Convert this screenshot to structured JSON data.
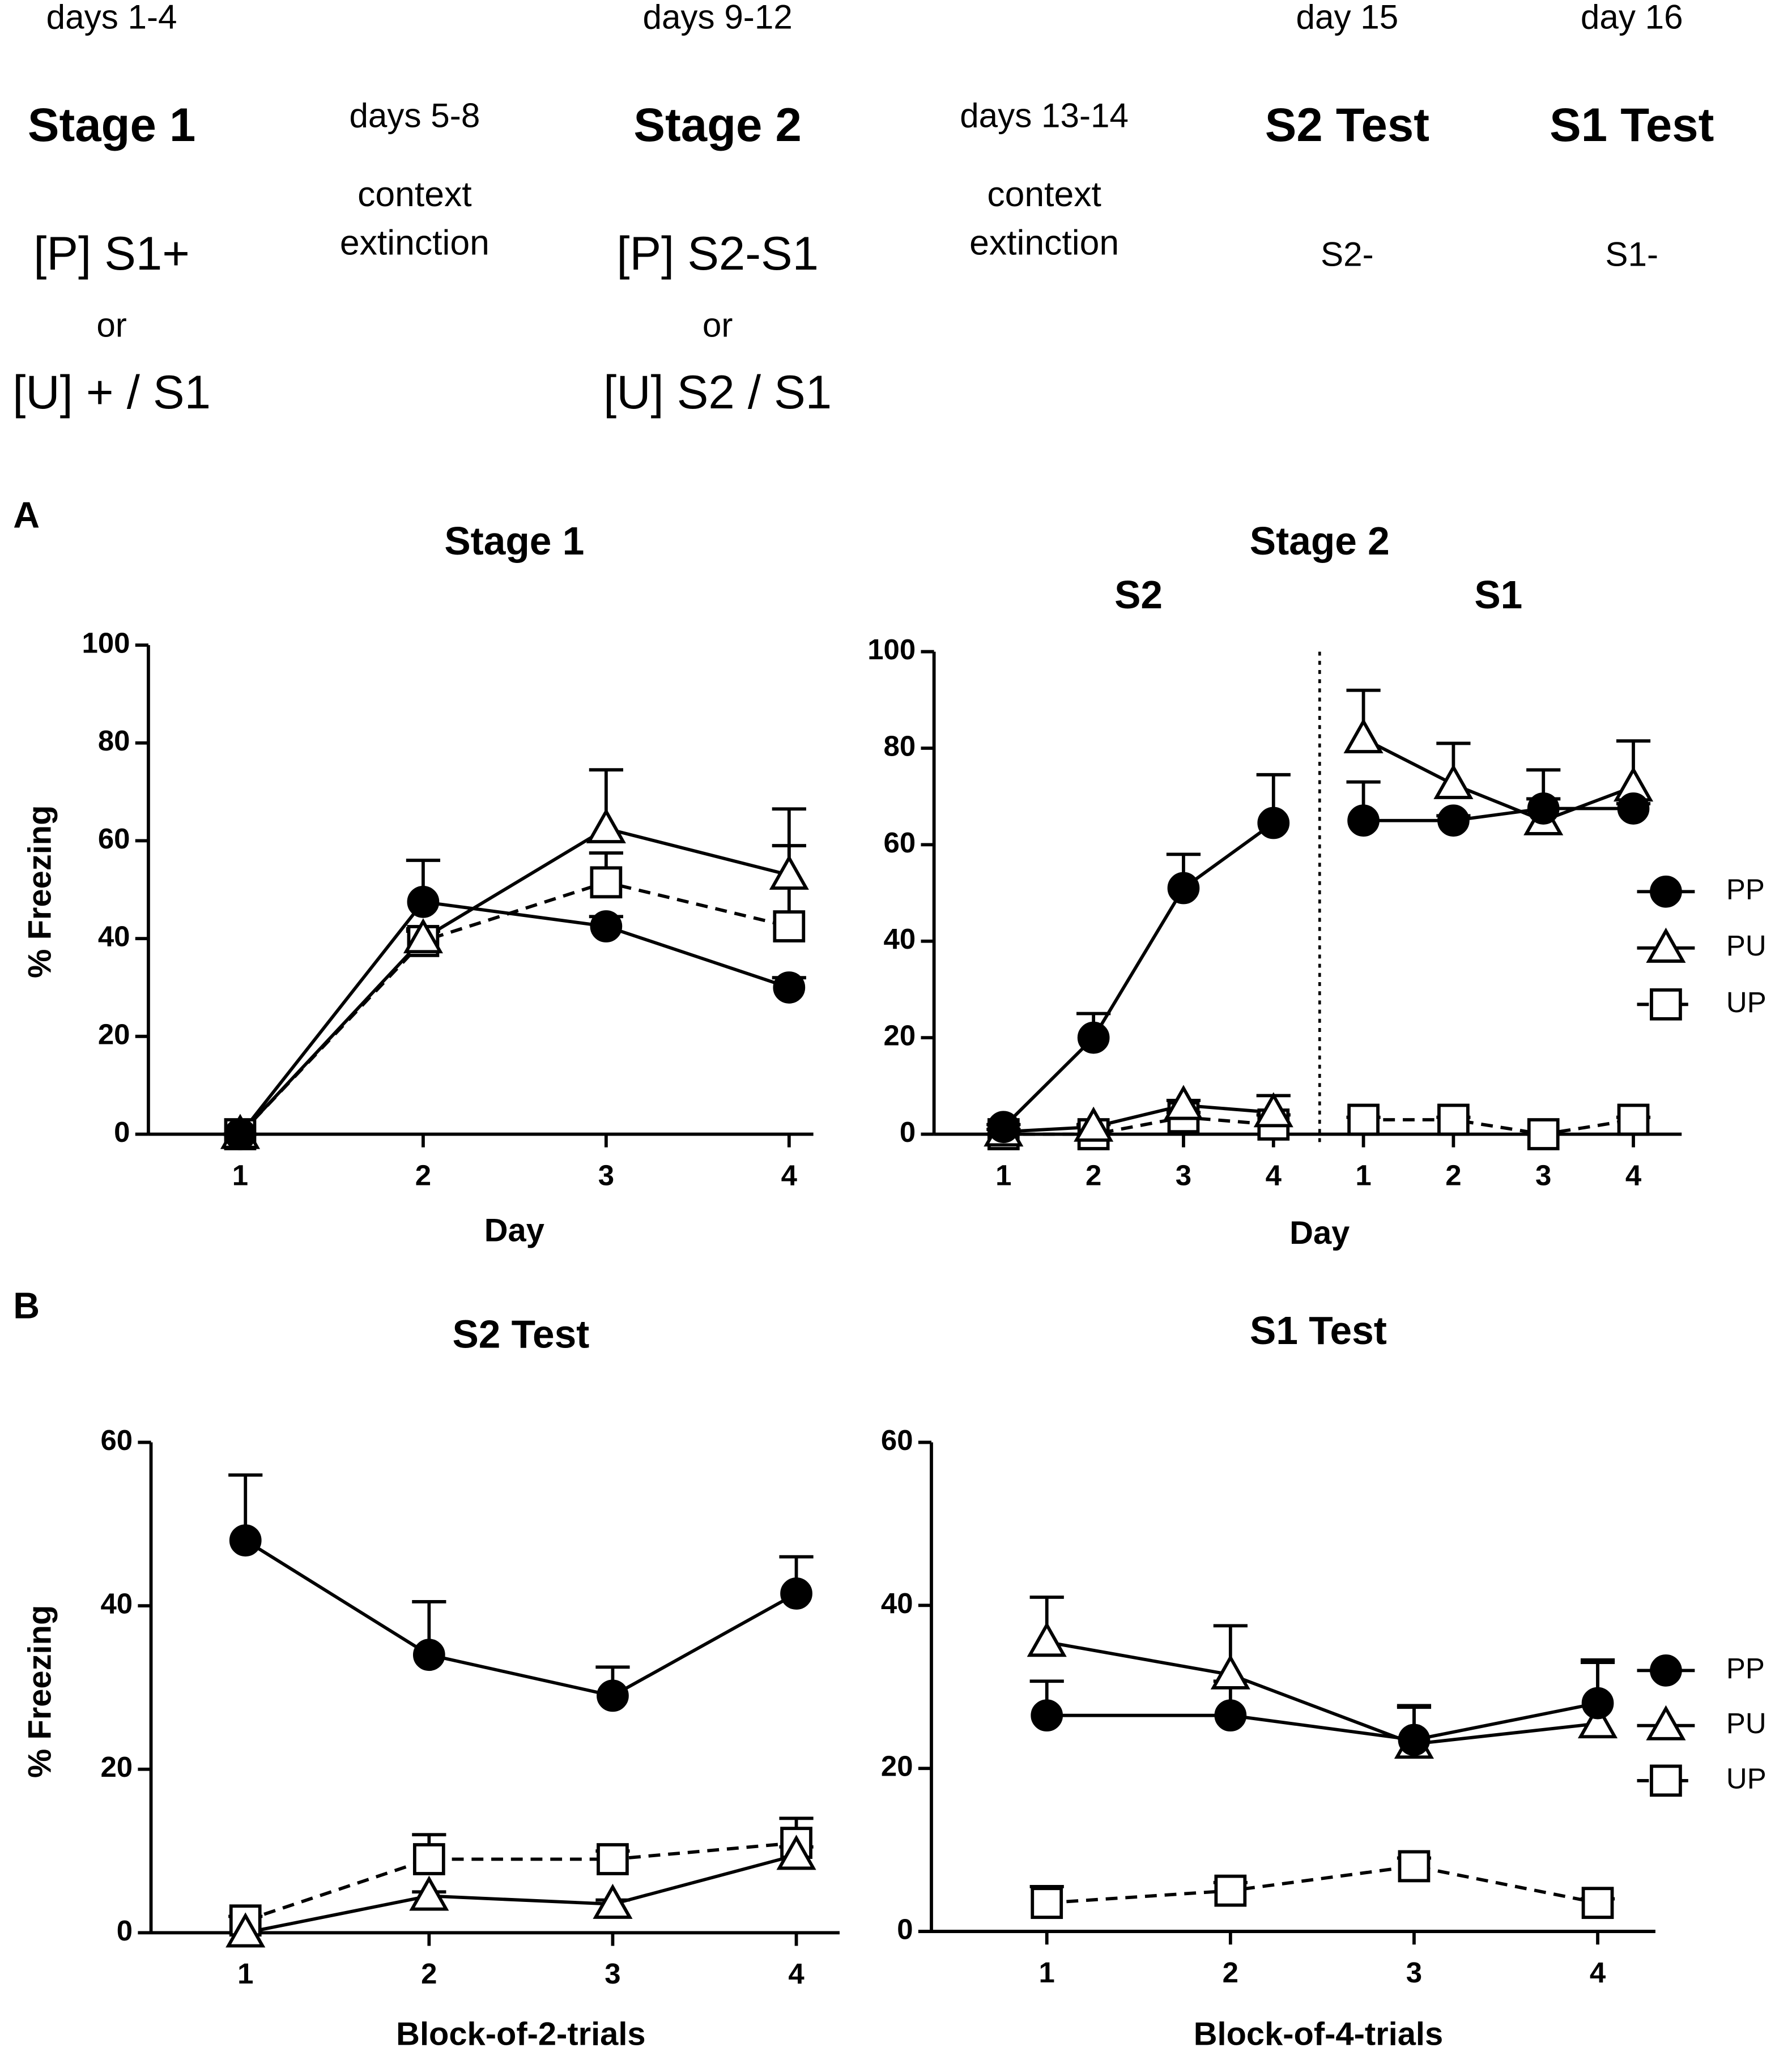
{
  "panels": [
    "A",
    "B"
  ],
  "design": [
    {
      "days": "days 1-4",
      "stage": "Stage 1",
      "lines": [
        "[P] S1+",
        "or",
        "[U] + / S1"
      ]
    },
    {
      "days": "days 5-8",
      "lines": [
        "context",
        "extinction"
      ]
    },
    {
      "days": "days 9-12",
      "stage": "Stage 2",
      "lines": [
        "[P] S2-S1",
        "or",
        "[U] S2 / S1"
      ]
    },
    {
      "days": "days 13-14",
      "lines": [
        "context",
        "extinction"
      ]
    },
    {
      "days": "day 15",
      "stage": "S2 Test",
      "lines": [
        "S2-"
      ]
    },
    {
      "days": "day 16",
      "stage": "S1 Test",
      "lines": [
        "S1-"
      ]
    }
  ],
  "chart_data": [
    {
      "type": "line",
      "title": "Stage 1",
      "xlabel": "Day",
      "ylabel": "% Freezing",
      "categories": [
        "1",
        "2",
        "3",
        "4"
      ],
      "ylim": [
        0,
        100
      ],
      "yticks": [
        0,
        20,
        40,
        60,
        80,
        100
      ],
      "series": [
        {
          "name": "PP",
          "color": "#000000",
          "marker": "circle",
          "line_style": "solid",
          "values": [
            0,
            47.5,
            42.5,
            30
          ],
          "errors": [
            0,
            8.5,
            2,
            2
          ]
        },
        {
          "name": "PU",
          "color": "#000000",
          "marker": "triangle",
          "line_style": "solid",
          "values": [
            0,
            40,
            62.5,
            53
          ],
          "errors": [
            0,
            2,
            12,
            13.5
          ]
        },
        {
          "name": "UP",
          "color": "#000000",
          "marker": "square",
          "line_style": "dashed",
          "values": [
            0,
            39.5,
            51.5,
            42.5
          ],
          "errors": [
            0,
            2,
            6,
            16.5
          ]
        }
      ]
    },
    {
      "type": "line",
      "title": "Stage 2",
      "xlabel": "Day",
      "sections": [
        {
          "label": "S2",
          "categories": [
            "1",
            "2",
            "3",
            "4"
          ]
        },
        {
          "label": "S1",
          "categories": [
            "1",
            "2",
            "3",
            "4"
          ]
        }
      ],
      "ylim": [
        0,
        100
      ],
      "yticks": [
        0,
        20,
        40,
        60,
        80,
        100
      ],
      "legend": "right",
      "series": [
        {
          "name": "PP",
          "color": "#000000",
          "marker": "circle",
          "line_style": "solid",
          "values": [
            1.5,
            20,
            51,
            64.5,
            65,
            65,
            67.5,
            67.5
          ],
          "errors": [
            0.5,
            5,
            7,
            10,
            8,
            1,
            2,
            1
          ]
        },
        {
          "name": "PU",
          "color": "#000000",
          "marker": "triangle",
          "line_style": "solid",
          "values": [
            0.5,
            1.5,
            6,
            4.5,
            82,
            72.5,
            65,
            72
          ],
          "errors": [
            0.5,
            0.5,
            1,
            3.5,
            10,
            8.5,
            10.5,
            9.5
          ]
        },
        {
          "name": "UP",
          "color": "#000000",
          "marker": "square",
          "line_style": "dashed",
          "values": [
            0,
            0,
            3.5,
            2,
            3,
            3,
            0,
            3
          ],
          "errors": [
            0,
            0,
            1,
            2,
            0.5,
            0.5,
            0,
            0.5
          ]
        }
      ]
    },
    {
      "type": "line",
      "title": "S2 Test",
      "xlabel": "Block-of-2-trials",
      "ylabel": "% Freezing",
      "categories": [
        "1",
        "2",
        "3",
        "4"
      ],
      "ylim": [
        0,
        60
      ],
      "yticks": [
        0,
        20,
        40,
        60
      ],
      "series": [
        {
          "name": "PP",
          "color": "#000000",
          "marker": "circle",
          "line_style": "solid",
          "values": [
            48,
            34,
            29,
            41.5
          ],
          "errors": [
            8,
            6.5,
            3.5,
            4.5
          ]
        },
        {
          "name": "PU",
          "color": "#000000",
          "marker": "triangle",
          "line_style": "solid",
          "values": [
            0,
            4.5,
            3.5,
            9.5
          ],
          "errors": [
            0,
            0.5,
            0.5,
            1
          ]
        },
        {
          "name": "UP",
          "color": "#000000",
          "marker": "square",
          "line_style": "dashed",
          "values": [
            1.5,
            9,
            9,
            11
          ],
          "errors": [
            0.5,
            3,
            1,
            3
          ]
        }
      ]
    },
    {
      "type": "line",
      "title": "S1 Test",
      "xlabel": "Block-of-4-trials",
      "categories": [
        "1",
        "2",
        "3",
        "4"
      ],
      "ylim": [
        0,
        60
      ],
      "yticks": [
        0,
        20,
        40,
        60
      ],
      "legend": "right",
      "series": [
        {
          "name": "PP",
          "color": "#000000",
          "marker": "circle",
          "line_style": "solid",
          "values": [
            26.5,
            26.5,
            23.5,
            28
          ],
          "errors": [
            4.2,
            4.2,
            4.2,
            5.3
          ]
        },
        {
          "name": "PU",
          "color": "#000000",
          "marker": "triangle",
          "line_style": "solid",
          "values": [
            35.5,
            31.5,
            23,
            25.5
          ],
          "errors": [
            5.5,
            6,
            4.5,
            7.5
          ]
        },
        {
          "name": "UP",
          "color": "#000000",
          "marker": "square",
          "line_style": "dashed",
          "values": [
            3.5,
            5,
            8,
            3.5
          ],
          "errors": [
            2,
            1,
            1,
            0.5
          ]
        }
      ]
    }
  ]
}
